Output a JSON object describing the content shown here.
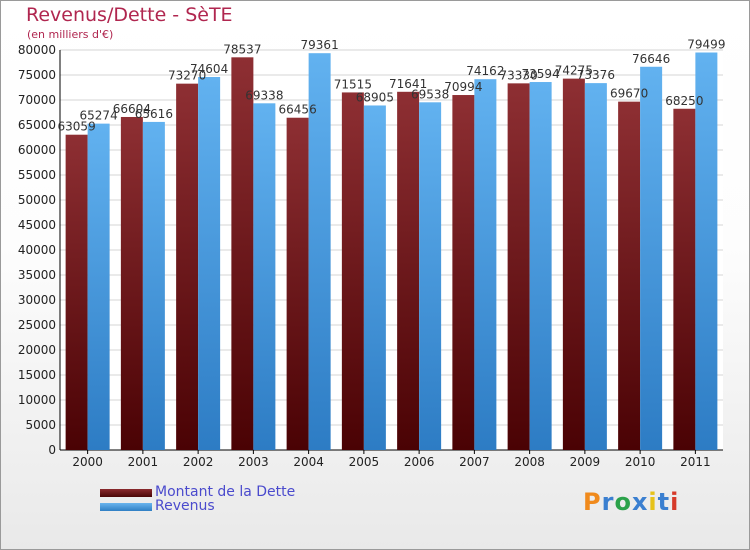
{
  "chart_data": {
    "type": "bar",
    "title": "Revenus/Dette - SèTE",
    "subtitle": "(en milliers d'€)",
    "categories": [
      "2000",
      "2001",
      "2002",
      "2003",
      "2004",
      "2005",
      "2006",
      "2007",
      "2008",
      "2009",
      "2010",
      "2011"
    ],
    "series": [
      {
        "name": "Montant de la Dette",
        "color": "#6b1419",
        "values": [
          63059,
          66604,
          73270,
          78537,
          66456,
          71515,
          71641,
          70994,
          73330,
          74275,
          69670,
          68250
        ],
        "labels": [
          "63059",
          "66604",
          "73270",
          "78537",
          "66456",
          "71515",
          "71641",
          "70994",
          "73330",
          "74275",
          "69670",
          "68250"
        ]
      },
      {
        "name": "Revenus",
        "color": "#4a9fe0",
        "values": [
          65274,
          65616,
          74604,
          69338,
          79361,
          68905,
          69538,
          74162,
          73594,
          73376,
          76646,
          79499
        ],
        "labels": [
          "65274",
          "65616",
          "74604",
          "69338",
          "79361",
          "68905",
          "69538",
          "74162",
          "73594",
          "73376",
          "76646",
          "79499"
        ]
      }
    ],
    "ylim": [
      0,
      80000
    ],
    "yticks": [
      "0",
      "5000",
      "10000",
      "15000",
      "20000",
      "25000",
      "30000",
      "35000",
      "40000",
      "45000",
      "50000",
      "55000",
      "60000",
      "65000",
      "70000",
      "75000",
      "80000"
    ],
    "grid": true,
    "legend_position": "bottom-left"
  },
  "brand": {
    "letters": [
      "P",
      "r",
      "o",
      "x",
      "i",
      "t",
      "i"
    ],
    "colors": [
      "#f08a1c",
      "#3a7fd0",
      "#2ba24a",
      "#3a7fd0",
      "#e6c21a",
      "#3a7fd0",
      "#d63a2a"
    ]
  }
}
